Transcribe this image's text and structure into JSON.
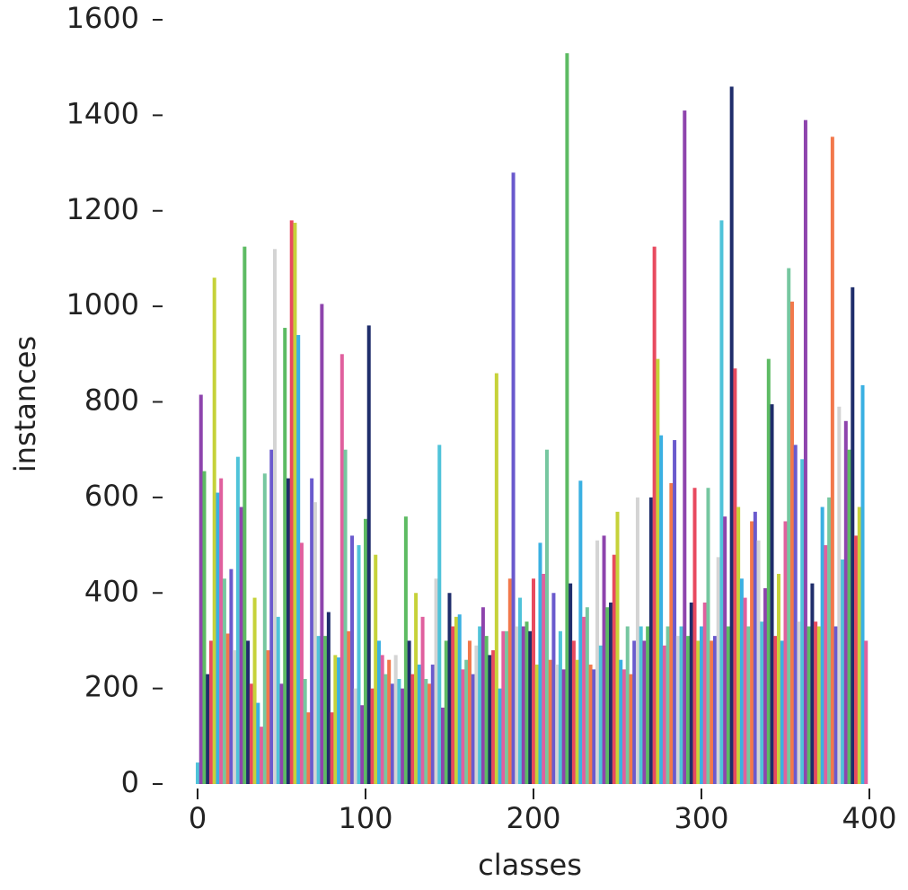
{
  "chart_data": {
    "type": "bar",
    "xlabel": "classes",
    "ylabel": "instances",
    "x": [
      0,
      2,
      4,
      6,
      8,
      10,
      12,
      14,
      16,
      18,
      20,
      22,
      24,
      26,
      28,
      30,
      32,
      34,
      36,
      38,
      40,
      42,
      44,
      46,
      48,
      50,
      52,
      54,
      56,
      58,
      60,
      62,
      64,
      66,
      68,
      70,
      72,
      74,
      76,
      78,
      80,
      82,
      84,
      86,
      88,
      90,
      92,
      94,
      96,
      98,
      100,
      102,
      104,
      106,
      108,
      110,
      112,
      114,
      116,
      118,
      120,
      122,
      124,
      126,
      128,
      130,
      132,
      134,
      136,
      138,
      140,
      142,
      144,
      146,
      148,
      150,
      152,
      154,
      156,
      158,
      160,
      162,
      164,
      166,
      168,
      170,
      172,
      174,
      176,
      178,
      180,
      182,
      184,
      186,
      188,
      190,
      192,
      194,
      196,
      198,
      200,
      202,
      204,
      206,
      208,
      210,
      212,
      214,
      216,
      218,
      220,
      222,
      224,
      226,
      228,
      230,
      232,
      234,
      236,
      238,
      240,
      242,
      244,
      246,
      248,
      250,
      252,
      254,
      256,
      258,
      260,
      262,
      264,
      266,
      268,
      270,
      272,
      274,
      276,
      278,
      280,
      282,
      284,
      286,
      288,
      290,
      292,
      294,
      296,
      298,
      300,
      302,
      304,
      306,
      308,
      310,
      312,
      314,
      316,
      318,
      320,
      322,
      324,
      326,
      328,
      330,
      332,
      334,
      336,
      338,
      340,
      342,
      344,
      346,
      348,
      350,
      352,
      354,
      356,
      358,
      360,
      362,
      364,
      366,
      368,
      370,
      372,
      374,
      376,
      378,
      380,
      382,
      384,
      386,
      388,
      390,
      392,
      394,
      396,
      398
    ],
    "values": [
      45,
      815,
      655,
      230,
      300,
      1060,
      610,
      640,
      430,
      315,
      450,
      280,
      685,
      580,
      1125,
      300,
      210,
      390,
      170,
      120,
      650,
      280,
      700,
      1120,
      350,
      210,
      955,
      640,
      1180,
      1175,
      940,
      505,
      220,
      150,
      640,
      590,
      310,
      1005,
      310,
      360,
      150,
      270,
      265,
      900,
      700,
      320,
      520,
      200,
      500,
      165,
      555,
      960,
      200,
      480,
      300,
      270,
      230,
      260,
      210,
      270,
      220,
      200,
      560,
      300,
      230,
      400,
      250,
      350,
      220,
      210,
      250,
      430,
      710,
      160,
      300,
      400,
      330,
      350,
      355,
      240,
      260,
      300,
      230,
      290,
      330,
      370,
      310,
      270,
      280,
      860,
      200,
      320,
      320,
      430,
      1280,
      330,
      390,
      330,
      340,
      320,
      430,
      250,
      505,
      440,
      700,
      260,
      400,
      250,
      320,
      240,
      1530,
      420,
      300,
      260,
      635,
      350,
      370,
      250,
      240,
      510,
      290,
      520,
      370,
      380,
      480,
      570,
      260,
      240,
      330,
      230,
      300,
      600,
      330,
      300,
      330,
      600,
      1125,
      890,
      730,
      290,
      330,
      630,
      720,
      310,
      330,
      1410,
      310,
      380,
      620,
      300,
      330,
      380,
      620,
      300,
      310,
      475,
      1180,
      560,
      330,
      1460,
      870,
      580,
      430,
      390,
      330,
      550,
      570,
      510,
      340,
      410,
      890,
      795,
      310,
      440,
      300,
      550,
      1080,
      1010,
      710,
      340,
      680,
      1390,
      330,
      420,
      340,
      330,
      580,
      500,
      600,
      1355,
      330,
      790,
      470,
      760,
      700,
      1040,
      520,
      580,
      835,
      300
    ],
    "palette": [
      "#4fc3d9",
      "#8e44ad",
      "#5dbb63",
      "#1f2d6b",
      "#e84a5f",
      "#c6d23a",
      "#3ab0e2",
      "#e0609e",
      "#76c7a0",
      "#f2784b",
      "#6a5acd",
      "#d4d4d4"
    ],
    "xlim": [
      0,
      400
    ],
    "ylim": [
      0,
      1600
    ],
    "xticks": [
      0,
      100,
      200,
      300,
      400
    ],
    "yticks": [
      0,
      200,
      400,
      600,
      800,
      1000,
      1200,
      1400,
      1600
    ]
  }
}
